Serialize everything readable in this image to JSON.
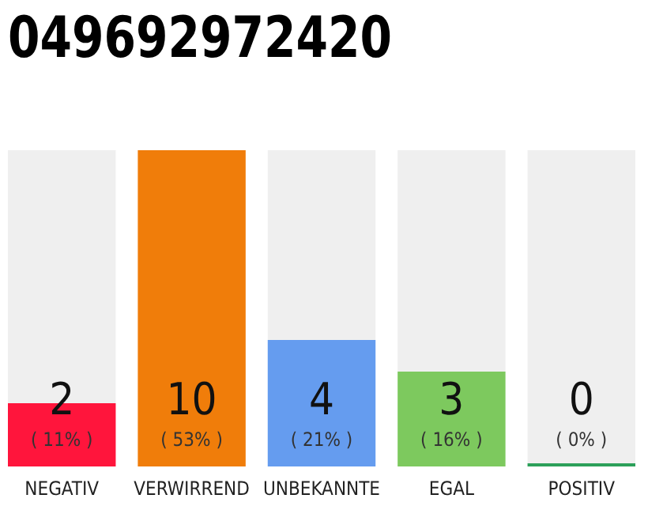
{
  "chart_data": {
    "type": "bar",
    "title": "049692972420",
    "categories": [
      "NEGATIV",
      "VERWIRREND",
      "UNBEKANNTE",
      "EGAL",
      "POSITIV"
    ],
    "values": [
      2,
      10,
      4,
      3,
      0
    ],
    "colors": [
      "#ff153c",
      "#f07d0a",
      "#659cef",
      "#7dc95e",
      "#2ca05a"
    ],
    "data_labels": true,
    "annotations": [
      "( 11% )",
      "( 53% )",
      "( 21% )",
      "( 16% )",
      "( 0% )"
    ]
  }
}
